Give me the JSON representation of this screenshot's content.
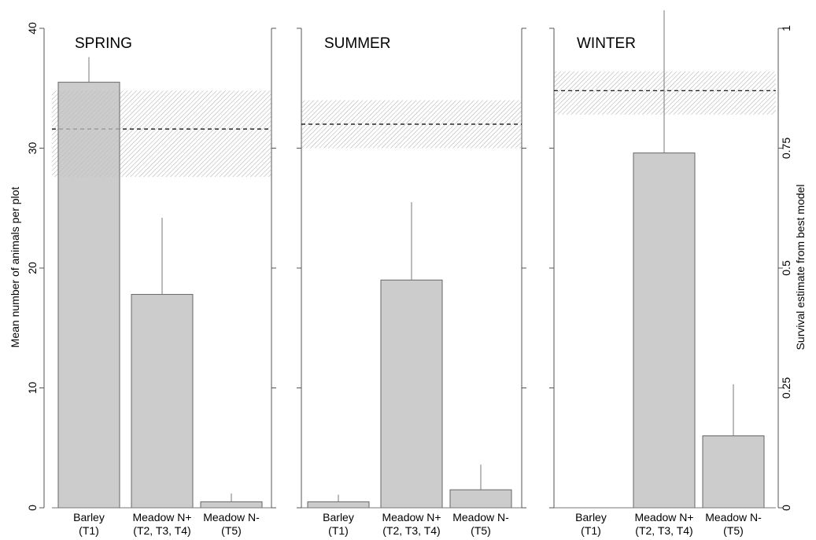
{
  "chart_data": {
    "type": "bar",
    "ylabel": "Mean number of animals per plot",
    "y2label": "Survival estimate from best model",
    "ylim": [
      0,
      40
    ],
    "yticks": [
      "0",
      "10",
      "20",
      "30",
      "40"
    ],
    "y2lim": [
      0,
      1
    ],
    "y2ticks": [
      "0",
      "0.25",
      "0.5",
      "0.75",
      "1"
    ],
    "categories": [
      {
        "line1": "Barley",
        "line2": "(T1)"
      },
      {
        "line1": "Meadow N+",
        "line2": "(T2, T3, T4)"
      },
      {
        "line1": "Meadow N-",
        "line2": "(T5)"
      }
    ],
    "bar_color": "#bebebe",
    "panels": [
      {
        "title": "SPRING",
        "values": [
          35.5,
          17.8,
          0.5
        ],
        "error_upper": [
          37.6,
          24.2,
          1.2
        ],
        "survival": 0.79,
        "survival_ci": [
          0.69,
          0.87
        ]
      },
      {
        "title": "SUMMER",
        "values": [
          0.5,
          19.0,
          1.5
        ],
        "error_upper": [
          1.1,
          25.5,
          3.6
        ],
        "survival": 0.8,
        "survival_ci": [
          0.75,
          0.85
        ]
      },
      {
        "title": "WINTER",
        "values": [
          0,
          29.6,
          6.0
        ],
        "error_upper": [
          0,
          41.5,
          10.3
        ],
        "survival": 0.87,
        "survival_ci": [
          0.82,
          0.91
        ]
      }
    ]
  }
}
